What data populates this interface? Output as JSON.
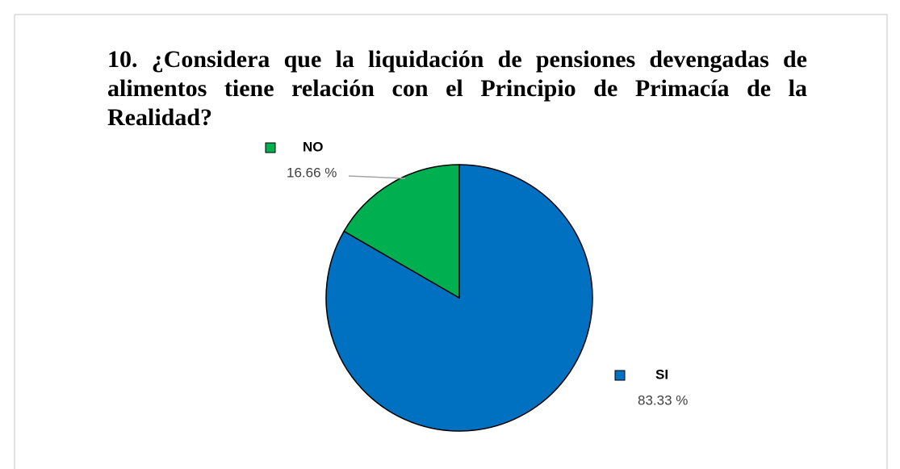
{
  "chart_data": {
    "type": "pie",
    "title": "10. ¿Considera que la liquidación de pensiones devengadas de alimentos tiene relación con el Principio de Primacía de la Realidad?",
    "categories": [
      "SI",
      "NO"
    ],
    "values": [
      83.33,
      16.66
    ],
    "value_labels": [
      "83.33 %",
      "16.66 %"
    ],
    "colors": [
      "#0070c0",
      "#00b050"
    ]
  }
}
